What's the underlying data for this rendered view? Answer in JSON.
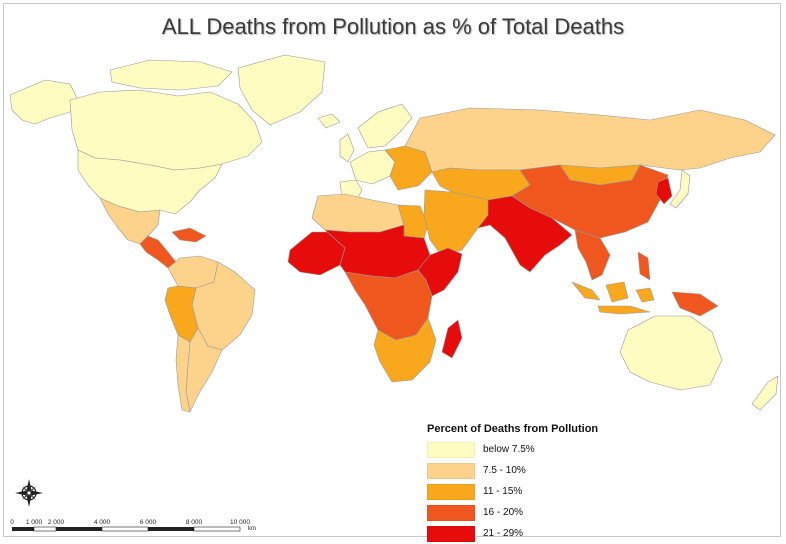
{
  "title": "ALL Deaths from Pollution as % of Total Deaths",
  "legend": {
    "title": "Percent of Deaths from Pollution",
    "items": [
      {
        "label": "below 7.5%",
        "color": "#fefcc0"
      },
      {
        "label": "7.5 - 10%",
        "color": "#fdd38b"
      },
      {
        "label": "11 - 15%",
        "color": "#f9a71d"
      },
      {
        "label": "16 - 20%",
        "color": "#f0571f"
      },
      {
        "label": "21 - 29%",
        "color": "#e60c0c"
      }
    ]
  },
  "scalebar": {
    "ticks": [
      "0",
      "1 000",
      "2 000",
      "4 000",
      "6 000",
      "8 000",
      "10 000"
    ],
    "unit": "km"
  },
  "compass": {
    "icon": "compass-rose-icon"
  },
  "regions": [
    {
      "name": "canada",
      "class": 0
    },
    {
      "name": "usa",
      "class": 0
    },
    {
      "name": "alaska",
      "class": 0
    },
    {
      "name": "arctic-islands",
      "class": 0
    },
    {
      "name": "greenland",
      "class": 0
    },
    {
      "name": "mexico",
      "class": 1
    },
    {
      "name": "central-america",
      "class": 3
    },
    {
      "name": "caribbean",
      "class": 3
    },
    {
      "name": "colombia-venezuela",
      "class": 1
    },
    {
      "name": "brazil",
      "class": 1
    },
    {
      "name": "andes",
      "class": 2
    },
    {
      "name": "southern-cone",
      "class": 1
    },
    {
      "name": "chile",
      "class": 1
    },
    {
      "name": "western-europe",
      "class": 0
    },
    {
      "name": "iberia",
      "class": 0
    },
    {
      "name": "uk",
      "class": 0
    },
    {
      "name": "iceland",
      "class": 0
    },
    {
      "name": "scandinavia",
      "class": 0
    },
    {
      "name": "eastern-europe",
      "class": 2
    },
    {
      "name": "russia",
      "class": 1
    },
    {
      "name": "north-africa",
      "class": 1
    },
    {
      "name": "egypt",
      "class": 2
    },
    {
      "name": "middle-east",
      "class": 2
    },
    {
      "name": "central-asia",
      "class": 2
    },
    {
      "name": "west-africa",
      "class": 4
    },
    {
      "name": "sahel",
      "class": 4
    },
    {
      "name": "horn-of-africa",
      "class": 4
    },
    {
      "name": "central-africa",
      "class": 3
    },
    {
      "name": "southern-africa",
      "class": 2
    },
    {
      "name": "madagascar",
      "class": 4
    },
    {
      "name": "south-asia",
      "class": 4
    },
    {
      "name": "china",
      "class": 3
    },
    {
      "name": "mongolia",
      "class": 2
    },
    {
      "name": "korea",
      "class": 4
    },
    {
      "name": "japan",
      "class": 0
    },
    {
      "name": "mainland-southeast-asia",
      "class": 3
    },
    {
      "name": "philippines",
      "class": 3
    },
    {
      "name": "indonesia",
      "class": 2
    },
    {
      "name": "papua-new-guinea",
      "class": 3
    },
    {
      "name": "australia",
      "class": 0
    },
    {
      "name": "new-zealand",
      "class": 0
    }
  ]
}
